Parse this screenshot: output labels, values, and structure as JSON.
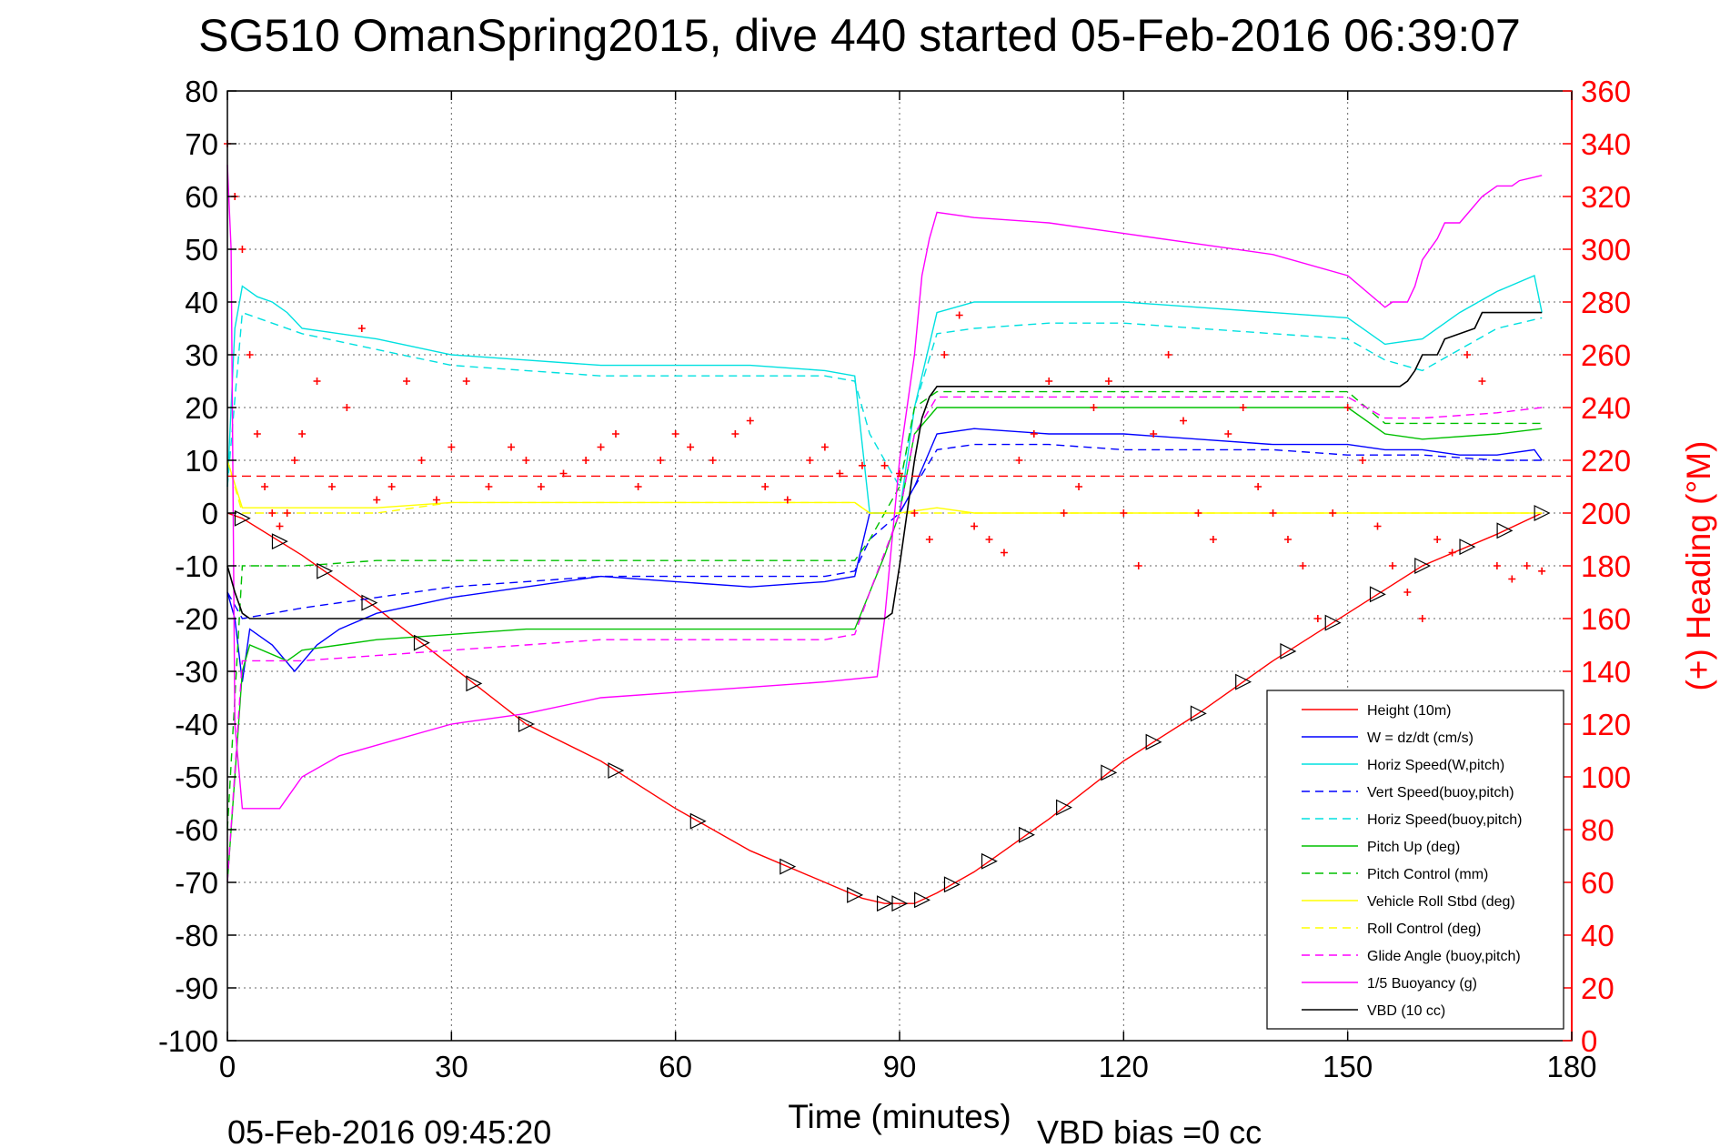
{
  "chart_data": {
    "type": "line",
    "title": "SG510 OmanSpring2015, dive 440 started 05-Feb-2016 06:39:07",
    "xlabel": "Time (minutes)",
    "ylabel": "",
    "y2label": "(+) Heading (°M)",
    "xlim": [
      0,
      180
    ],
    "ylim": [
      -100,
      80
    ],
    "y2lim": [
      0,
      360
    ],
    "xticks": [
      "0",
      "30",
      "60",
      "90",
      "120",
      "150",
      "180"
    ],
    "yticks": [
      "80",
      "70",
      "60",
      "50",
      "40",
      "30",
      "20",
      "10",
      "0",
      "-10",
      "-20",
      "-30",
      "-40",
      "-50",
      "-60",
      "-70",
      "-80",
      "-90",
      "-100"
    ],
    "y2ticks": [
      "360",
      "340",
      "320",
      "300",
      "280",
      "260",
      "240",
      "220",
      "200",
      "180",
      "160",
      "140",
      "120",
      "100",
      "80",
      "60",
      "40",
      "20",
      "0"
    ],
    "grid": true,
    "legend_position": "bottom-right",
    "footer_left": "05-Feb-2016 09:45:20",
    "footer_right": "VBD bias =0 cc",
    "reference_heading": 214,
    "series": [
      {
        "name": "Height (10m)",
        "color": "#ff0000",
        "style": "solid",
        "x": [
          0,
          2,
          10,
          20,
          30,
          40,
          50,
          60,
          70,
          80,
          85,
          88,
          90,
          92,
          95,
          100,
          110,
          120,
          130,
          140,
          150,
          160,
          170,
          176
        ],
        "y": [
          0,
          -1,
          -8,
          -18,
          -29,
          -40,
          -47,
          -56,
          -64,
          -70,
          -73,
          -74,
          -74,
          -74,
          -72,
          -68,
          -58,
          -47,
          -38,
          -28,
          -19,
          -10,
          -4,
          0
        ]
      },
      {
        "name": "W = dz/dt (cm/s)",
        "color": "#0000ff",
        "style": "solid",
        "x": [
          0,
          1,
          2,
          3,
          6,
          9,
          12,
          15,
          20,
          30,
          40,
          50,
          60,
          70,
          80,
          84,
          86,
          88,
          90,
          92,
          95,
          100,
          110,
          120,
          130,
          140,
          150,
          155,
          160,
          165,
          170,
          175,
          176
        ],
        "y": [
          -15,
          -20,
          -32,
          -22,
          -25,
          -30,
          -25,
          -22,
          -19,
          -16,
          -14,
          -12,
          -13,
          -14,
          -13,
          -12,
          0,
          0,
          0,
          5,
          15,
          16,
          15,
          15,
          14,
          13,
          13,
          12,
          12,
          11,
          11,
          12,
          10
        ]
      },
      {
        "name": "Horiz Speed(W,pitch)",
        "color": "#00e0e0",
        "style": "solid",
        "x": [
          0,
          1,
          2,
          4,
          6,
          8,
          10,
          20,
          30,
          40,
          50,
          60,
          70,
          80,
          84,
          86,
          88,
          90,
          92,
          95,
          100,
          110,
          120,
          130,
          140,
          150,
          155,
          160,
          165,
          170,
          175,
          176
        ],
        "y": [
          5,
          35,
          43,
          41,
          40,
          38,
          35,
          33,
          30,
          29,
          28,
          28,
          28,
          27,
          26,
          0,
          0,
          0,
          20,
          38,
          40,
          40,
          40,
          39,
          38,
          37,
          32,
          33,
          38,
          42,
          45,
          38
        ]
      },
      {
        "name": "Vert Speed(buoy,pitch)",
        "color": "#0000ff",
        "style": "dashed",
        "x": [
          0,
          2,
          10,
          20,
          30,
          40,
          50,
          60,
          70,
          80,
          84,
          86,
          90,
          92,
          95,
          100,
          110,
          120,
          130,
          140,
          150,
          155,
          160,
          170,
          176
        ],
        "y": [
          -15,
          -20,
          -18,
          -16,
          -14,
          -13,
          -12,
          -12,
          -12,
          -12,
          -11,
          -5,
          0,
          5,
          12,
          13,
          13,
          12,
          12,
          12,
          11,
          11,
          11,
          10,
          10
        ]
      },
      {
        "name": "Horiz Speed(buoy,pitch)",
        "color": "#00e0e0",
        "style": "dashed",
        "x": [
          0,
          2,
          10,
          20,
          30,
          40,
          50,
          60,
          70,
          80,
          84,
          86,
          90,
          92,
          95,
          100,
          110,
          120,
          130,
          140,
          150,
          155,
          160,
          170,
          176
        ],
        "y": [
          5,
          38,
          34,
          31,
          28,
          27,
          26,
          26,
          26,
          26,
          25,
          15,
          5,
          20,
          34,
          35,
          36,
          36,
          35,
          34,
          33,
          29,
          27,
          35,
          37
        ]
      },
      {
        "name": "Pitch Up (deg)",
        "color": "#00c000",
        "style": "solid",
        "x": [
          0,
          1,
          2,
          3,
          8,
          10,
          20,
          30,
          40,
          50,
          60,
          70,
          80,
          84,
          86,
          88,
          90,
          92,
          95,
          100,
          110,
          120,
          130,
          140,
          150,
          155,
          160,
          170,
          176
        ],
        "y": [
          -70,
          -50,
          -30,
          -25,
          -28,
          -26,
          -24,
          -23,
          -22,
          -22,
          -22,
          -22,
          -22,
          -22,
          -15,
          -8,
          0,
          15,
          20,
          20,
          20,
          20,
          20,
          20,
          20,
          15,
          14,
          15,
          16
        ]
      },
      {
        "name": "Pitch Control (mm)",
        "color": "#00c000",
        "style": "dashed",
        "x": [
          0,
          2,
          10,
          20,
          30,
          40,
          50,
          60,
          70,
          80,
          84,
          86,
          90,
          92,
          95,
          100,
          110,
          120,
          130,
          140,
          150,
          155,
          160,
          170,
          176
        ],
        "y": [
          -60,
          -10,
          -10,
          -9,
          -9,
          -9,
          -9,
          -9,
          -9,
          -9,
          -9,
          -5,
          5,
          20,
          23,
          23,
          23,
          23,
          23,
          23,
          23,
          17,
          17,
          17,
          17
        ]
      },
      {
        "name": "Vehicle Roll Stbd (deg)",
        "color": "#ffff00",
        "style": "solid",
        "x": [
          0,
          2,
          10,
          20,
          30,
          40,
          50,
          60,
          70,
          80,
          84,
          86,
          90,
          95,
          100,
          110,
          120,
          130,
          140,
          150,
          160,
          170,
          176
        ],
        "y": [
          10,
          1,
          1,
          1,
          2,
          2,
          2,
          2,
          2,
          2,
          2,
          0,
          0,
          1,
          0,
          0,
          0,
          0,
          0,
          0,
          0,
          0,
          0
        ]
      },
      {
        "name": "Roll Control (deg)",
        "color": "#ffff00",
        "style": "dashed",
        "x": [
          0,
          2,
          10,
          20,
          30,
          40,
          50,
          60,
          70,
          80,
          84,
          86,
          90,
          95,
          100,
          110,
          120,
          130,
          140,
          150,
          160,
          170,
          176
        ],
        "y": [
          10,
          0,
          0,
          0,
          2,
          2,
          2,
          2,
          2,
          2,
          2,
          0,
          0,
          0,
          0,
          0,
          0,
          0,
          0,
          0,
          0,
          0,
          0
        ]
      },
      {
        "name": "Glide Angle (buoy,pitch)",
        "color": "#ff00ff",
        "style": "dashed",
        "x": [
          0,
          2,
          10,
          20,
          30,
          40,
          50,
          60,
          70,
          80,
          84,
          86,
          90,
          92,
          95,
          100,
          110,
          120,
          130,
          140,
          150,
          155,
          160,
          170,
          176
        ],
        "y": [
          -70,
          -28,
          -28,
          -27,
          -26,
          -25,
          -24,
          -24,
          -24,
          -24,
          -23,
          -15,
          0,
          15,
          22,
          22,
          22,
          22,
          22,
          22,
          22,
          18,
          18,
          19,
          20
        ]
      },
      {
        "name": "1/5 Buoyancy (g)",
        "color": "#ff00ff",
        "style": "solid",
        "x": [
          0,
          0.5,
          1,
          2,
          7,
          8,
          10,
          15,
          20,
          30,
          40,
          50,
          60,
          70,
          80,
          87,
          88,
          90,
          92,
          93,
          94,
          95,
          100,
          110,
          120,
          130,
          140,
          150,
          155,
          156,
          158,
          159,
          160,
          162,
          163,
          165,
          168,
          170,
          172,
          173,
          176
        ],
        "y": [
          66,
          50,
          -40,
          -56,
          -56,
          -54,
          -50,
          -46,
          -44,
          -40,
          -38,
          -35,
          -34,
          -33,
          -32,
          -31,
          -20,
          10,
          30,
          45,
          52,
          57,
          56,
          55,
          53,
          51,
          49,
          45,
          39,
          40,
          40,
          43,
          48,
          52,
          55,
          55,
          60,
          62,
          62,
          63,
          64
        ]
      },
      {
        "name": "VBD (10 cc)",
        "color": "#000000",
        "style": "solid",
        "x": [
          0,
          1,
          2,
          3,
          88,
          89,
          90,
          91,
          92,
          93,
          94,
          95,
          100,
          110,
          120,
          130,
          140,
          150,
          157,
          158,
          159,
          160,
          162,
          163,
          167,
          168,
          176
        ],
        "y": [
          -10,
          -15,
          -19,
          -20,
          -20,
          -19,
          -10,
          0,
          10,
          18,
          22,
          24,
          24,
          24,
          24,
          24,
          24,
          24,
          24,
          25,
          27,
          30,
          30,
          33,
          35,
          38,
          38
        ]
      }
    ],
    "heading_x": [
      0,
      1,
      2,
      3,
      4,
      5,
      6,
      7,
      8,
      9,
      10,
      12,
      14,
      16,
      18,
      20,
      22,
      24,
      26,
      28,
      30,
      32,
      35,
      38,
      40,
      42,
      45,
      48,
      50,
      52,
      55,
      58,
      60,
      62,
      65,
      68,
      70,
      72,
      75,
      78,
      80,
      82,
      85,
      88,
      90,
      92,
      94,
      96,
      98,
      100,
      102,
      104,
      106,
      108,
      110,
      112,
      114,
      116,
      118,
      120,
      122,
      124,
      126,
      128,
      130,
      132,
      134,
      136,
      138,
      140,
      142,
      144,
      146,
      148,
      150,
      152,
      154,
      156,
      158,
      160,
      162,
      164,
      166,
      168,
      170,
      172,
      174,
      176
    ],
    "heading_y": [
      340,
      320,
      300,
      260,
      230,
      210,
      200,
      195,
      200,
      220,
      230,
      250,
      210,
      240,
      270,
      205,
      210,
      250,
      220,
      205,
      225,
      250,
      210,
      225,
      220,
      210,
      215,
      220,
      225,
      230,
      210,
      220,
      230,
      225,
      220,
      230,
      235,
      210,
      205,
      220,
      225,
      215,
      218,
      218,
      215,
      200,
      190,
      260,
      275,
      195,
      190,
      185,
      220,
      230,
      250,
      200,
      210,
      240,
      250,
      200,
      180,
      230,
      260,
      235,
      200,
      190,
      230,
      240,
      210,
      200,
      190,
      180,
      160,
      200,
      240,
      220,
      195,
      180,
      170,
      160,
      190,
      185,
      260,
      250,
      180,
      175,
      180,
      178
    ]
  }
}
